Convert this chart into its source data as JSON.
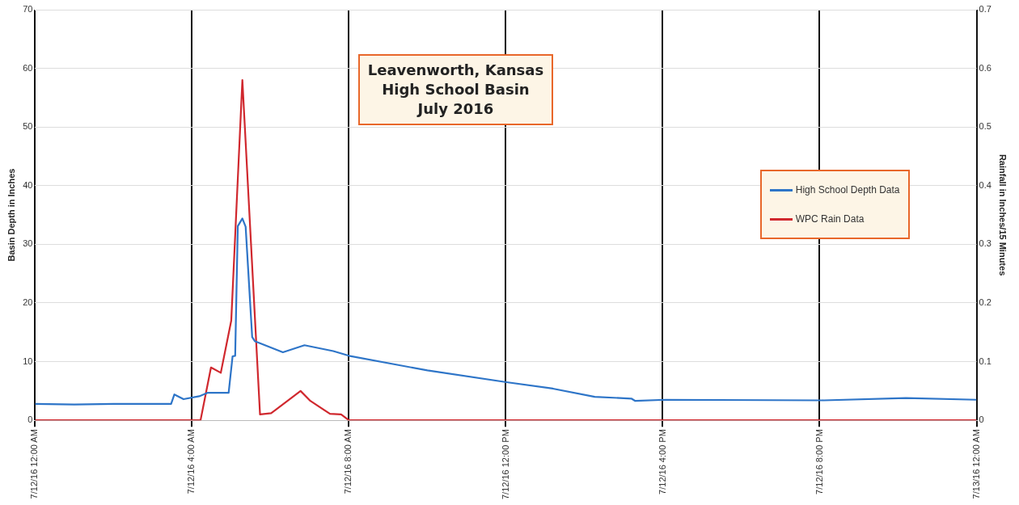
{
  "chart_data": {
    "type": "line",
    "title": "Leavenworth, Kansas\nHigh School Basin\nJuly 2016",
    "ylabel": "Basin Depth in Inches",
    "y2label": "Rainfall in Inches/15 Minutes",
    "xlim": [
      "2016-07-12T00:00",
      "2016-07-13T00:00"
    ],
    "xticks": [
      {
        "value": "2016-07-12T00:00",
        "label": "7/12/16 12:00 AM"
      },
      {
        "value": "2016-07-12T04:00",
        "label": "7/12/16 4:00 AM"
      },
      {
        "value": "2016-07-12T08:00",
        "label": "7/12/16 8:00 AM"
      },
      {
        "value": "2016-07-12T12:00",
        "label": "7/12/16 12:00 PM"
      },
      {
        "value": "2016-07-12T16:00",
        "label": "7/12/16 4:00 PM"
      },
      {
        "value": "2016-07-12T20:00",
        "label": "7/12/16 8:00 PM"
      },
      {
        "value": "2016-07-13T00:00",
        "label": "7/13/16 12:00 AM"
      }
    ],
    "ylim": [
      0,
      70
    ],
    "yticks": [
      0,
      10,
      20,
      30,
      40,
      50,
      60,
      70
    ],
    "y2lim": [
      0,
      0.7
    ],
    "y2ticks": [
      0,
      0.1,
      0.2,
      0.3,
      0.4,
      0.5,
      0.6,
      0.7
    ],
    "grid": true,
    "legend": "right",
    "marker": "none",
    "series": [
      {
        "name": "High School Depth Data",
        "color": "#2e75c8",
        "x": [
          "2016-07-12T00:00",
          "2016-07-12T01:00",
          "2016-07-12T02:00",
          "2016-07-12T03:28",
          "2016-07-12T03:33",
          "2016-07-12T03:47",
          "2016-07-12T04:11",
          "2016-07-12T04:24",
          "2016-07-12T04:56",
          "2016-07-12T05:02",
          "2016-07-12T05:06",
          "2016-07-12T05:10",
          "2016-07-12T05:17",
          "2016-07-12T05:22",
          "2016-07-12T05:32",
          "2016-07-12T05:36",
          "2016-07-12T06:19",
          "2016-07-12T06:52",
          "2016-07-12T07:36",
          "2016-07-12T08:00",
          "2016-07-12T10:00",
          "2016-07-12T12:01",
          "2016-07-12T13:12",
          "2016-07-12T14:16",
          "2016-07-12T15:12",
          "2016-07-12T15:18",
          "2016-07-12T16:04",
          "2016-07-12T20:06",
          "2016-07-12T22:12",
          "2016-07-13T00:00"
        ],
        "values": [
          2.8,
          2.7,
          2.8,
          2.8,
          4.4,
          3.6,
          4.1,
          4.7,
          4.7,
          10.9,
          11,
          33.1,
          34.4,
          33,
          14.2,
          13.5,
          11.6,
          12.8,
          11.8,
          11,
          8.5,
          6.5,
          5.4,
          4,
          3.7,
          3.3,
          3.5,
          3.4,
          3.8,
          3.5
        ]
      },
      {
        "name": "WPC Rain Data",
        "color": "#d0282e",
        "axis": "y2",
        "x": [
          "2016-07-12T00:00",
          "2016-07-12T04:13",
          "2016-07-12T04:29",
          "2016-07-12T04:44",
          "2016-07-12T05:00",
          "2016-07-12T05:17",
          "2016-07-12T05:44",
          "2016-07-12T06:01",
          "2016-07-12T06:46",
          "2016-07-12T07:01",
          "2016-07-12T07:31",
          "2016-07-12T07:48",
          "2016-07-12T08:00",
          "2016-07-13T00:00"
        ],
        "values": [
          0,
          0,
          0.09,
          0.081,
          0.17,
          0.58,
          0.01,
          0.012,
          0.05,
          0.033,
          0.011,
          0.01,
          0,
          0
        ]
      }
    ]
  }
}
